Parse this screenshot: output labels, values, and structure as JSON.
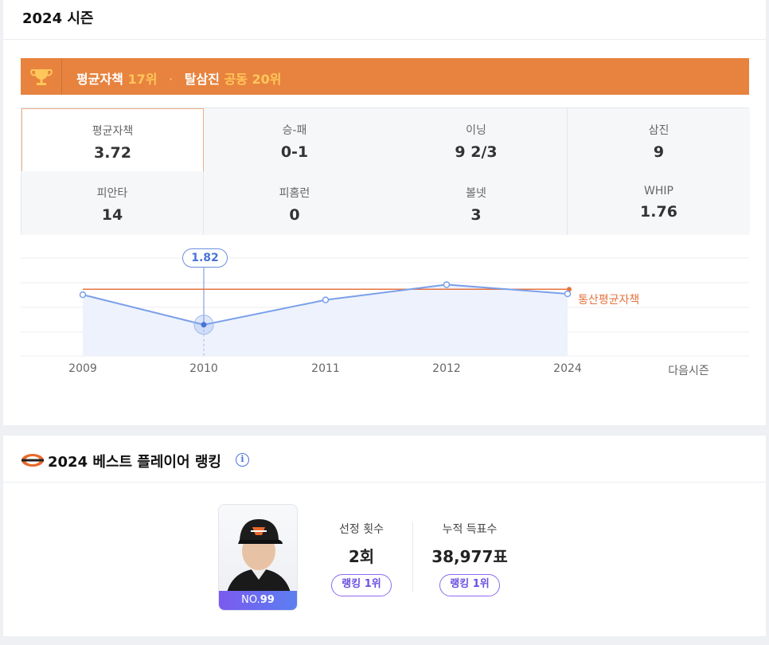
{
  "season": {
    "title": "2024 시즌",
    "banner": {
      "era_label": "평균자책",
      "era_rank": "17위",
      "separator": "·",
      "so_label": "탈삼진",
      "so_rank": "공동 20위"
    },
    "stats": [
      {
        "label": "평균자책",
        "value": "3.72",
        "active": true
      },
      {
        "label": "승-패",
        "value": "0-1"
      },
      {
        "label": "이닝",
        "value": "9 2/3"
      },
      {
        "label": "삼진",
        "value": "9"
      },
      {
        "label": "피안타",
        "value": "14"
      },
      {
        "label": "피홈런",
        "value": "0"
      },
      {
        "label": "볼넷",
        "value": "3"
      },
      {
        "label": "WHIP",
        "value": "1.76"
      }
    ],
    "chart_legend": "통산평균자책",
    "tooltip_value": "1.82",
    "next_season_label": "다음시즌"
  },
  "chart_data": {
    "type": "line",
    "categories": [
      "2009",
      "2010",
      "2011",
      "2012",
      "2024"
    ],
    "series": [
      {
        "values": [
          2.8,
          1.82,
          2.63,
          3.13,
          2.83
        ]
      }
    ],
    "reference_line": {
      "name": "통산평균자책",
      "value": 2.98
    },
    "selected_index": 1,
    "ylim": [
      0.8,
      4.0
    ],
    "grid": true,
    "colors": {
      "line": "#7aa0ea",
      "fill": "#eef2fc",
      "reference": "#e7733f"
    }
  },
  "best": {
    "title": "2024 베스트 플레이어 랭킹",
    "info_icon": "info-icon",
    "player_number_prefix": "NO.",
    "player_number": "99",
    "metrics": [
      {
        "label": "선정 횟수",
        "value": "2회",
        "rank": "랭킹 1위"
      },
      {
        "label": "누적 득표수",
        "value": "38,977표",
        "rank": "랭킹 1위"
      }
    ]
  },
  "colors": {
    "accent": "#e7833f",
    "highlight": "#ffc65a",
    "rank": "#6b4fe0",
    "chart_line": "#7aa0ea"
  }
}
